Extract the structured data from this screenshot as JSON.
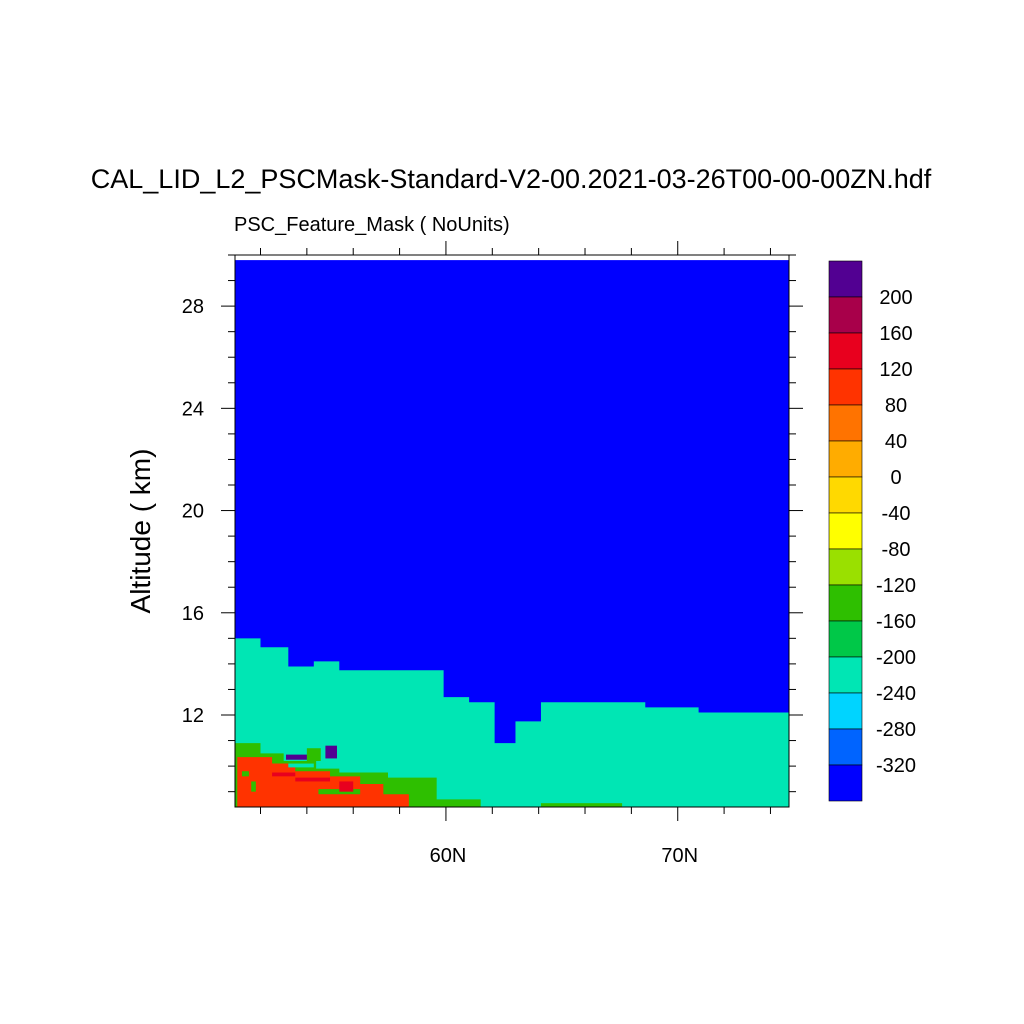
{
  "title": "CAL_LID_L2_PSCMask-Standard-V2-00.2021-03-26T00-00-00ZN.hdf",
  "subtitle": "PSC_Feature_Mask ( NoUnits)",
  "chart_data": {
    "type": "heatmap",
    "title": "CAL_LID_L2_PSCMask-Standard-V2-00.2021-03-26T00-00-00ZN.hdf",
    "subtitle": "PSC_Feature_Mask ( NoUnits)",
    "ylabel": "Altitude ( km)",
    "xlabel": "",
    "x_ticks": [
      60,
      70
    ],
    "x_tick_labels": [
      "60N",
      "70N"
    ],
    "xlim": [
      50.9,
      74.8
    ],
    "y_ticks": [
      12,
      16,
      20,
      24,
      28
    ],
    "y_tick_labels": [
      "12",
      "16",
      "20",
      "24",
      "28"
    ],
    "ylim": [
      8.4,
      30.0
    ],
    "missing_value_top_km": 29.8,
    "colorbar": {
      "labels": [
        "200",
        "160",
        "120",
        "80",
        "40",
        "0",
        "-40",
        "-80",
        "-120",
        "-160",
        "-200",
        "-240",
        "-280",
        "-320"
      ],
      "colors_top_to_bottom": [
        "#520092",
        "#a8004a",
        "#e8001e",
        "#ff3300",
        "#ff7300",
        "#ffac00",
        "#ffd900",
        "#ffff00",
        "#9ae000",
        "#2ebf00",
        "#00c848",
        "#00e6b4",
        "#00d4ff",
        "#0064ff",
        "#0000ff"
      ]
    },
    "fill_codes": {
      "background": -340,
      "cyan_layer": -220,
      "green_layer": -140,
      "red_layer": 100
    },
    "layer_top_profiles": {
      "cyan_layer_top": [
        {
          "lat": 50.9,
          "alt": 15.0
        },
        {
          "lat": 52.0,
          "alt": 14.65
        },
        {
          "lat": 53.2,
          "alt": 13.9
        },
        {
          "lat": 54.3,
          "alt": 14.1
        },
        {
          "lat": 55.4,
          "alt": 13.75
        },
        {
          "lat": 59.9,
          "alt": 12.7
        },
        {
          "lat": 61.0,
          "alt": 12.5
        },
        {
          "lat": 62.1,
          "alt": 10.9
        },
        {
          "lat": 63.0,
          "alt": 11.75
        },
        {
          "lat": 64.1,
          "alt": 12.5
        },
        {
          "lat": 68.6,
          "alt": 12.3
        },
        {
          "lat": 70.9,
          "alt": 12.1
        },
        {
          "lat": 74.8,
          "alt": 12.1
        }
      ],
      "green_layer_top": [
        {
          "lat": 50.9,
          "alt": 10.9
        },
        {
          "lat": 52.0,
          "alt": 10.5
        },
        {
          "lat": 53.0,
          "alt": 10.2
        },
        {
          "lat": 54.4,
          "alt": 9.9
        },
        {
          "lat": 55.4,
          "alt": 9.75
        },
        {
          "lat": 57.5,
          "alt": 9.55
        },
        {
          "lat": 59.6,
          "alt": 8.7
        },
        {
          "lat": 61.5,
          "alt": 8.5
        }
      ],
      "red_layer_top": [
        {
          "lat": 51.0,
          "alt": 10.35
        },
        {
          "lat": 52.5,
          "alt": 10.1
        },
        {
          "lat": 53.5,
          "alt": 9.8
        },
        {
          "lat": 55.0,
          "alt": 9.6
        },
        {
          "lat": 56.3,
          "alt": 9.3
        },
        {
          "lat": 57.3,
          "alt": 8.9
        },
        {
          "lat": 58.4,
          "alt": 8.6
        }
      ]
    }
  }
}
